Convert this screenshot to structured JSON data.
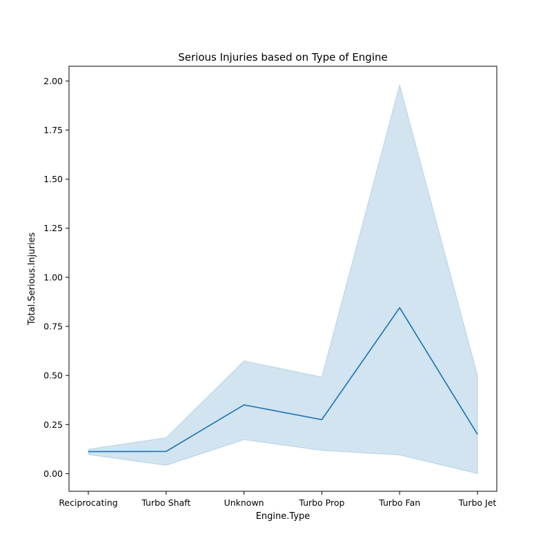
{
  "chart_data": {
    "type": "line",
    "title": "Serious Injuries based on Type of Engine",
    "xlabel": "Engine.Type",
    "ylabel": "Total.Serious.Injuries",
    "categories": [
      "Reciprocating",
      "Turbo Shaft",
      "Unknown",
      "Turbo Prop",
      "Turbo Fan",
      "Turbo Jet"
    ],
    "series": [
      {
        "values": [
          0.112,
          0.113,
          0.35,
          0.275,
          0.845,
          0.2
        ],
        "ci_lower": [
          0.097,
          0.042,
          0.173,
          0.118,
          0.095,
          0.0
        ],
        "ci_upper": [
          0.124,
          0.183,
          0.574,
          0.492,
          1.98,
          0.5
        ],
        "color": "#1f77b4",
        "band_color": "#1f77b4"
      }
    ],
    "ylim": [
      -0.09,
      2.075
    ],
    "yticks": [
      "0.00",
      "0.25",
      "0.50",
      "0.75",
      "1.00",
      "1.25",
      "1.50",
      "1.75",
      "2.00"
    ],
    "ytick_values": [
      0,
      0.25,
      0.5,
      0.75,
      1.0,
      1.25,
      1.5,
      1.75,
      2.0
    ],
    "grid": false,
    "legend": "none"
  }
}
